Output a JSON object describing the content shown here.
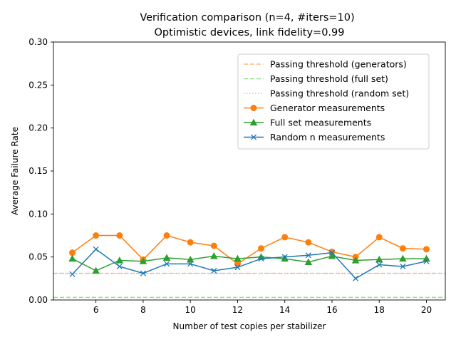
{
  "chart_data": {
    "type": "line",
    "title": "Verification comparison (n=4, #iters=10)",
    "subtitle": "Optimistic devices, link fidelity=0.99",
    "xlabel": "Number of test copies per stabilizer",
    "ylabel": "Average Failure Rate",
    "xlim": [
      4.2,
      20.8
    ],
    "ylim": [
      0.0,
      0.3
    ],
    "xticks": [
      6,
      8,
      10,
      12,
      14,
      16,
      18,
      20
    ],
    "yticks": [
      0.0,
      0.05,
      0.1,
      0.15,
      0.2,
      0.25,
      0.3
    ],
    "ytick_labels": [
      "0.00",
      "0.05",
      "0.10",
      "0.15",
      "0.20",
      "0.25",
      "0.30"
    ],
    "grid": false,
    "legend_position": "upper right",
    "x": [
      5,
      6,
      7,
      8,
      9,
      10,
      11,
      12,
      13,
      14,
      15,
      16,
      17,
      18,
      19,
      20
    ],
    "thresholds": [
      {
        "name": "Passing threshold (generators)",
        "value": 0.031,
        "color": "#ffbb78",
        "style": "dashed"
      },
      {
        "name": "Passing threshold (full set)",
        "value": 0.003,
        "color": "#98df8a",
        "style": "dashed"
      },
      {
        "name": "Passing threshold (random set)",
        "value": 0.031,
        "color": "#aec7e8",
        "style": "dotted"
      }
    ],
    "series": [
      {
        "name": "Generator measurements",
        "color": "#ff7f0e",
        "marker": "circle",
        "values": [
          0.055,
          0.075,
          0.075,
          0.047,
          0.075,
          0.067,
          0.063,
          0.042,
          0.06,
          0.073,
          0.067,
          0.056,
          0.05,
          0.073,
          0.06,
          0.059
        ]
      },
      {
        "name": "Full set measurements",
        "color": "#2ca02c",
        "marker": "triangle",
        "values": [
          0.048,
          0.034,
          0.046,
          0.045,
          0.049,
          0.047,
          0.051,
          0.048,
          0.05,
          0.048,
          0.044,
          0.051,
          0.046,
          0.047,
          0.048,
          0.048
        ]
      },
      {
        "name": "Random n measurements",
        "color": "#1f77b4",
        "marker": "x",
        "values": [
          0.03,
          0.059,
          0.039,
          0.031,
          0.042,
          0.042,
          0.034,
          0.038,
          0.048,
          0.05,
          0.052,
          0.055,
          0.025,
          0.041,
          0.039,
          0.045
        ]
      }
    ]
  }
}
